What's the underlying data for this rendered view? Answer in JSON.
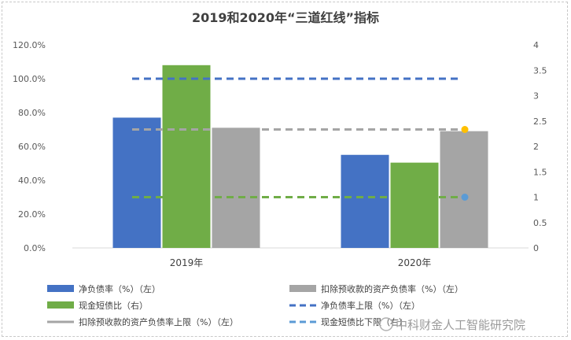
{
  "chart_data": {
    "type": "bar",
    "title": "2019和2020年“三道红线”指标",
    "categories": [
      "2019年",
      "2020年"
    ],
    "ylim_left": [
      0,
      120
    ],
    "ylim_right": [
      0,
      4
    ],
    "yticks_left": [
      "0.0%",
      "20.0%",
      "40.0%",
      "60.0%",
      "80.0%",
      "100.0%",
      "120.0%"
    ],
    "yticks_right": [
      "0",
      "0.5",
      "1",
      "1.5",
      "2",
      "2.5",
      "3",
      "3.5",
      "4"
    ],
    "grid": false,
    "legend_position": "bottom",
    "series": [
      {
        "name": "净负债率（%）（左）",
        "kind": "bar",
        "axis": "left",
        "color": "#4472c4",
        "values": [
          77,
          55
        ]
      },
      {
        "name": "现金短债比（右）",
        "kind": "bar",
        "axis": "right",
        "color": "#70ad47",
        "values": [
          3.6,
          1.68
        ]
      },
      {
        "name": "扣除预收款的资产负债率（%）（左）",
        "kind": "bar",
        "axis": "left",
        "color": "#a5a5a5",
        "values": [
          71,
          69
        ]
      }
    ],
    "lines": [
      {
        "name": "净负债率上限（%）（左）",
        "axis": "left",
        "color": "#4472c4",
        "value": 100
      },
      {
        "name": "扣除预收款的资产负债率上限（%）（左）",
        "axis": "left",
        "color": "#a5a5a5",
        "value": 70
      },
      {
        "name": "现金短债比下限（右）",
        "axis": "right",
        "color": "#70ad47",
        "value": 1
      }
    ],
    "legend": [
      {
        "label": "净负债率（%）（左）",
        "kind": "box",
        "color": "#4472c4"
      },
      {
        "label": "扣除预收款的资产负债率（%）（左）",
        "kind": "box",
        "color": "#a5a5a5"
      },
      {
        "label": "现金短债比（右）",
        "kind": "box",
        "color": "#70ad47"
      },
      {
        "label": "净负债率上限（%）（左）",
        "kind": "dash",
        "color": "#4472c4"
      },
      {
        "label": "扣除预收款的资产负债率上限（%）（左）",
        "kind": "solid",
        "color": "#a5a5a5"
      },
      {
        "label": "现金短债比下限（右）",
        "kind": "dash",
        "color": "#5b9bd5"
      }
    ]
  },
  "watermark": "中科财金人工智能研究院"
}
